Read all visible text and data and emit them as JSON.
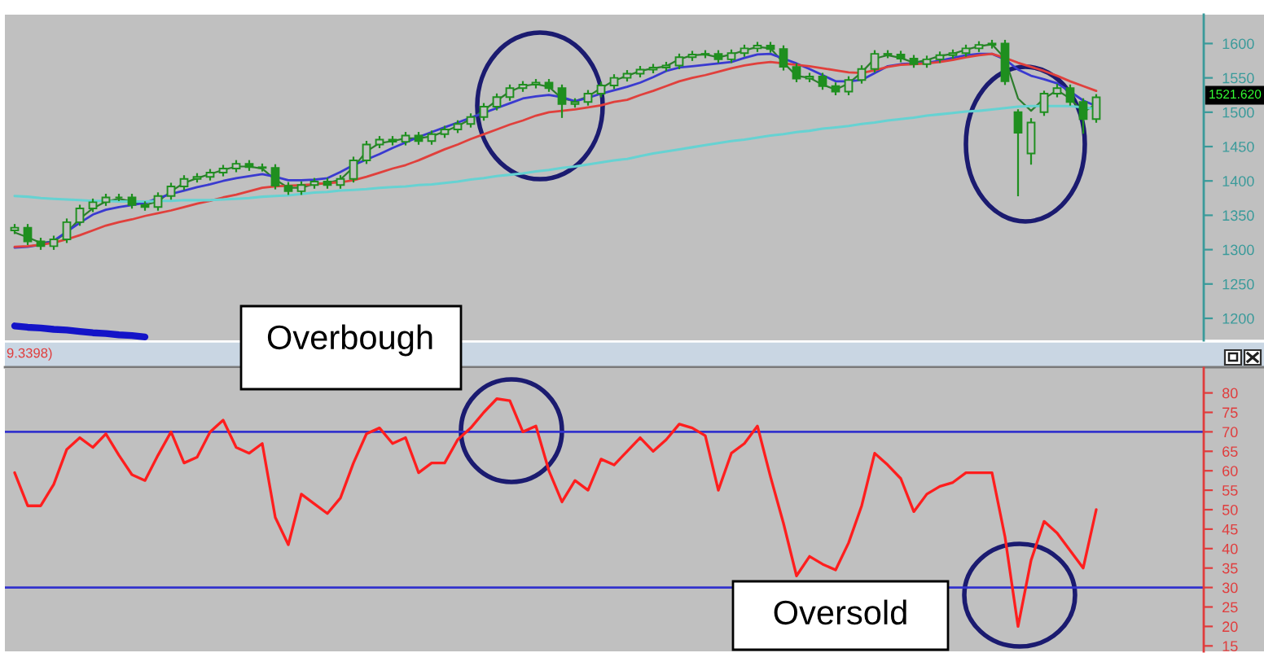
{
  "chart_data": [
    {
      "type": "candlestick",
      "color": "#1f8f1f",
      "categories": [
        null,
        null,
        null,
        null,
        null,
        null,
        null,
        null,
        null,
        null,
        null,
        null,
        null,
        null,
        null,
        null,
        null,
        null,
        null,
        null,
        null,
        null,
        null,
        null,
        null,
        null,
        null,
        null,
        null,
        null,
        null,
        null,
        null,
        null,
        null,
        null,
        null,
        null,
        null,
        null,
        null,
        null,
        null,
        null,
        null,
        null,
        null,
        null,
        null,
        null,
        null,
        null,
        null,
        null,
        null,
        null,
        null,
        null,
        null,
        null,
        null,
        null,
        null,
        null,
        null,
        null,
        null,
        null,
        null,
        null,
        null,
        null,
        null,
        null,
        null,
        null,
        null,
        null,
        null,
        null,
        null,
        null,
        null,
        null
      ],
      "ohlc": [
        [
          1328,
          1336,
          1324,
          1332
        ],
        [
          1332,
          1336,
          1308,
          1312
        ],
        [
          1312,
          1316,
          1301,
          1305
        ],
        [
          1305,
          1319,
          1301,
          1315
        ],
        [
          1315,
          1344,
          1311,
          1340
        ],
        [
          1340,
          1364,
          1336,
          1360
        ],
        [
          1360,
          1373,
          1356,
          1369
        ],
        [
          1369,
          1380,
          1365,
          1376
        ],
        [
          1376,
          1380,
          1372,
          1376
        ],
        [
          1376,
          1380,
          1361,
          1365
        ],
        [
          1365,
          1369,
          1358,
          1362
        ],
        [
          1362,
          1382,
          1358,
          1378
        ],
        [
          1378,
          1396,
          1374,
          1392
        ],
        [
          1392,
          1407,
          1388,
          1403
        ],
        [
          1403,
          1410,
          1399,
          1406
        ],
        [
          1406,
          1416,
          1402,
          1412
        ],
        [
          1412,
          1422,
          1408,
          1418
        ],
        [
          1418,
          1429,
          1414,
          1425
        ],
        [
          1425,
          1429,
          1416,
          1420
        ],
        [
          1420,
          1424,
          1415,
          1419
        ],
        [
          1419,
          1423,
          1389,
          1393
        ],
        [
          1393,
          1397,
          1381,
          1385
        ],
        [
          1385,
          1398,
          1381,
          1394
        ],
        [
          1394,
          1403,
          1390,
          1399
        ],
        [
          1399,
          1403,
          1390,
          1394
        ],
        [
          1394,
          1407,
          1390,
          1403
        ],
        [
          1403,
          1434,
          1399,
          1430
        ],
        [
          1430,
          1457,
          1426,
          1453
        ],
        [
          1453,
          1464,
          1449,
          1460
        ],
        [
          1460,
          1464,
          1453,
          1457
        ],
        [
          1457,
          1470,
          1453,
          1466
        ],
        [
          1466,
          1470,
          1454,
          1458
        ],
        [
          1458,
          1472,
          1454,
          1468
        ],
        [
          1468,
          1479,
          1464,
          1475
        ],
        [
          1475,
          1487,
          1471,
          1483
        ],
        [
          1483,
          1497,
          1479,
          1493
        ],
        [
          1493,
          1512,
          1489,
          1508
        ],
        [
          1508,
          1526,
          1504,
          1522
        ],
        [
          1522,
          1539,
          1518,
          1535
        ],
        [
          1535,
          1544,
          1531,
          1540
        ],
        [
          1540,
          1547,
          1536,
          1543
        ],
        [
          1543,
          1547,
          1531,
          1535
        ],
        [
          1535,
          1539,
          1493,
          1512
        ],
        [
          1512,
          1519,
          1508,
          1515
        ],
        [
          1515,
          1531,
          1511,
          1527
        ],
        [
          1527,
          1543,
          1523,
          1539
        ],
        [
          1539,
          1554,
          1535,
          1550
        ],
        [
          1550,
          1560,
          1546,
          1556
        ],
        [
          1556,
          1566,
          1552,
          1562
        ],
        [
          1562,
          1569,
          1558,
          1565
        ],
        [
          1565,
          1572,
          1561,
          1568
        ],
        [
          1568,
          1584,
          1564,
          1580
        ],
        [
          1580,
          1588,
          1576,
          1584
        ],
        [
          1584,
          1589,
          1580,
          1585
        ],
        [
          1585,
          1589,
          1573,
          1577
        ],
        [
          1577,
          1590,
          1573,
          1586
        ],
        [
          1586,
          1597,
          1582,
          1593
        ],
        [
          1593,
          1601,
          1589,
          1597
        ],
        [
          1597,
          1601,
          1588,
          1592
        ],
        [
          1592,
          1596,
          1562,
          1566
        ],
        [
          1566,
          1570,
          1545,
          1549
        ],
        [
          1549,
          1556,
          1545,
          1552
        ],
        [
          1552,
          1556,
          1534,
          1538
        ],
        [
          1538,
          1542,
          1526,
          1530
        ],
        [
          1530,
          1551,
          1526,
          1547
        ],
        [
          1547,
          1567,
          1543,
          1563
        ],
        [
          1563,
          1589,
          1559,
          1585
        ],
        [
          1585,
          1589,
          1580,
          1584
        ],
        [
          1584,
          1588,
          1574,
          1578
        ],
        [
          1578,
          1582,
          1566,
          1570
        ],
        [
          1570,
          1581,
          1566,
          1577
        ],
        [
          1577,
          1587,
          1573,
          1583
        ],
        [
          1583,
          1590,
          1579,
          1586
        ],
        [
          1586,
          1597,
          1582,
          1593
        ],
        [
          1593,
          1602,
          1589,
          1598
        ],
        [
          1598,
          1604,
          1594,
          1600
        ],
        [
          1600,
          1604,
          1541,
          1545
        ],
        [
          1500,
          1503,
          1379,
          1470
        ],
        [
          1440,
          1490,
          1425,
          1485
        ],
        [
          1500,
          1530,
          1496,
          1527
        ],
        [
          1527,
          1540,
          1523,
          1535
        ],
        [
          1535,
          1539,
          1511,
          1515
        ],
        [
          1515,
          1519,
          1470,
          1490
        ],
        [
          1490,
          1525,
          1486,
          1521.62
        ]
      ],
      "series": [
        {
          "type": "line",
          "color": "#2d7d2d",
          "values": [
            1325,
            1318,
            1310,
            1312,
            1325,
            1345,
            1360,
            1370,
            1374,
            1370,
            1365,
            1370,
            1385,
            1397,
            1404,
            1410,
            1416,
            1421,
            1421,
            1418,
            1402,
            1390,
            1390,
            1396,
            1397,
            1402,
            1420,
            1443,
            1455,
            1458,
            1462,
            1462,
            1465,
            1472,
            1480,
            1490,
            1503,
            1517,
            1530,
            1538,
            1541,
            1537,
            1520,
            1516,
            1523,
            1535,
            1546,
            1553,
            1560,
            1564,
            1567,
            1577,
            1583,
            1584,
            1580,
            1584,
            1590,
            1595,
            1593,
            1572,
            1553,
            1550,
            1540,
            1533,
            1542,
            1558,
            1578,
            1583,
            1579,
            1572,
            1576,
            1582,
            1585,
            1591,
            1596,
            1599,
            1578,
            1520,
            1502,
            1520,
            1532,
            1520,
            1500,
            1512
          ]
        },
        {
          "type": "line",
          "color": "#3a3ad0",
          "values": [
            1303,
            1304,
            1307,
            1313,
            1326,
            1339,
            1351,
            1358,
            1362,
            1365,
            1368,
            1375,
            1381,
            1386,
            1391,
            1395,
            1400,
            1404,
            1407,
            1410,
            1406,
            1401,
            1401,
            1402,
            1404,
            1413,
            1423,
            1431,
            1439,
            1448,
            1456,
            1464,
            1471,
            1478,
            1485,
            1492,
            1499,
            1506,
            1513,
            1520,
            1523,
            1525,
            1522,
            1516,
            1521,
            1527,
            1532,
            1537,
            1543,
            1551,
            1560,
            1565,
            1567,
            1569,
            1571,
            1573,
            1579,
            1584,
            1585,
            1578,
            1571,
            1563,
            1554,
            1545,
            1545,
            1547,
            1557,
            1567,
            1570,
            1571,
            1572,
            1575,
            1579,
            1583,
            1585,
            1585,
            1577,
            1562,
            1553,
            1548,
            1542,
            1530,
            1517,
            1509
          ]
        },
        {
          "type": "line",
          "color": "#e0403c",
          "values": [
            1304,
            1305,
            1307,
            1310,
            1315,
            1321,
            1328,
            1335,
            1340,
            1344,
            1349,
            1353,
            1357,
            1362,
            1367,
            1371,
            1376,
            1380,
            1385,
            1390,
            1392,
            1393,
            1394,
            1395,
            1397,
            1398,
            1401,
            1406,
            1412,
            1418,
            1423,
            1430,
            1438,
            1446,
            1453,
            1461,
            1468,
            1475,
            1482,
            1488,
            1495,
            1500,
            1502,
            1504,
            1507,
            1510,
            1515,
            1518,
            1525,
            1531,
            1538,
            1545,
            1550,
            1554,
            1559,
            1564,
            1568,
            1571,
            1573,
            1571,
            1569,
            1567,
            1564,
            1561,
            1558,
            1557,
            1561,
            1566,
            1569,
            1570,
            1571,
            1573,
            1576,
            1580,
            1583,
            1585,
            1579,
            1572,
            1566,
            1560,
            1553,
            1545,
            1538,
            1531
          ]
        },
        {
          "type": "line",
          "color": "#66d2d2",
          "values": [
            1378,
            1377,
            1375,
            1374,
            1373,
            1372,
            1371,
            1371,
            1370,
            1370,
            1370,
            1371,
            1371,
            1372,
            1372,
            1372,
            1373,
            1374,
            1375,
            1377,
            1378,
            1379,
            1381,
            1383,
            1384,
            1386,
            1387,
            1388,
            1390,
            1391,
            1392,
            1394,
            1395,
            1397,
            1399,
            1402,
            1404,
            1407,
            1409,
            1411,
            1414,
            1416,
            1419,
            1421,
            1424,
            1427,
            1430,
            1432,
            1436,
            1440,
            1443,
            1446,
            1449,
            1452,
            1455,
            1458,
            1460,
            1463,
            1466,
            1468,
            1471,
            1473,
            1476,
            1478,
            1480,
            1483,
            1485,
            1488,
            1490,
            1492,
            1495,
            1497,
            1499,
            1501,
            1502,
            1504,
            1506,
            1508,
            1509,
            1509,
            1509,
            1509,
            1507,
            1505
          ]
        },
        {
          "type": "line",
          "color": "#1414c8",
          "values": [
            1189,
            1187,
            1186,
            1184,
            1183,
            1181,
            1179,
            1178,
            1176,
            1175,
            1173,
            null,
            null,
            null,
            null,
            null,
            null,
            null,
            null,
            null,
            null,
            null,
            null,
            null,
            null,
            null,
            null,
            null,
            null,
            null,
            null,
            null,
            null,
            null,
            null,
            null,
            null,
            null,
            null,
            null,
            null,
            null,
            null,
            null,
            null,
            null,
            null,
            null,
            null,
            null,
            null,
            null,
            null,
            null,
            null,
            null,
            null,
            null,
            null,
            null,
            null,
            null,
            null,
            null,
            null,
            null,
            null,
            null,
            null,
            null,
            null,
            null,
            null,
            null,
            null,
            null,
            null,
            null,
            null,
            null,
            null,
            null,
            null,
            null
          ]
        }
      ],
      "ylim": [
        1168,
        1642
      ],
      "yticks": [
        1200,
        1250,
        1300,
        1350,
        1400,
        1450,
        1500,
        1550,
        1600
      ],
      "tick_labels": "y",
      "annotations": [
        "1521.620"
      ]
    },
    {
      "type": "line",
      "categories": [
        null,
        null,
        null,
        null,
        null,
        null,
        null,
        null,
        null,
        null,
        null,
        null,
        null,
        null,
        null,
        null,
        null,
        null,
        null,
        null,
        null,
        null,
        null,
        null,
        null,
        null,
        null,
        null,
        null,
        null,
        null,
        null,
        null,
        null,
        null,
        null,
        null,
        null,
        null,
        null,
        null,
        null,
        null,
        null,
        null,
        null,
        null,
        null,
        null,
        null,
        null,
        null,
        null,
        null,
        null,
        null,
        null,
        null,
        null,
        null,
        null,
        null,
        null,
        null,
        null,
        null,
        null,
        null,
        null,
        null,
        null,
        null,
        null,
        null,
        null,
        null,
        null,
        null,
        null,
        null,
        null,
        null,
        null,
        null
      ],
      "series": [
        {
          "color": "#ff1e1e",
          "values": [
            59.5,
            51,
            51,
            56.5,
            65.5,
            68.5,
            66,
            69.5,
            64,
            59,
            57.5,
            64,
            70,
            62,
            63.5,
            70,
            73,
            66,
            64.5,
            67,
            48,
            41,
            54,
            51.5,
            49,
            53,
            62,
            69.5,
            71,
            67,
            68.5,
            59.5,
            62,
            62,
            68,
            71,
            75,
            78.5,
            78,
            70,
            71.5,
            60,
            52,
            57.5,
            55,
            63,
            61.5,
            65,
            68.5,
            65,
            68,
            72,
            71,
            69,
            55,
            64.5,
            67,
            71.5,
            58.5,
            46.5,
            33,
            38,
            36,
            34.5,
            41.5,
            51,
            64.5,
            61.5,
            58,
            49.5,
            54,
            56,
            57,
            59.5,
            59.5,
            59.5,
            43,
            20,
            37,
            47,
            44,
            39.5,
            35,
            50
          ]
        }
      ],
      "ylim": [
        13.6,
        86.4
      ],
      "yticks": [
        15,
        20,
        25,
        30,
        35,
        40,
        45,
        50,
        55,
        60,
        65,
        70,
        75,
        80
      ],
      "tick_labels": "y",
      "ref_lines": [
        {
          "axis": "y",
          "value": 70,
          "color": "#3333cc"
        },
        {
          "axis": "y",
          "value": 30,
          "color": "#3333cc"
        }
      ],
      "annotations": [
        "9.3398)",
        "Overbough",
        "Oversold"
      ]
    }
  ]
}
